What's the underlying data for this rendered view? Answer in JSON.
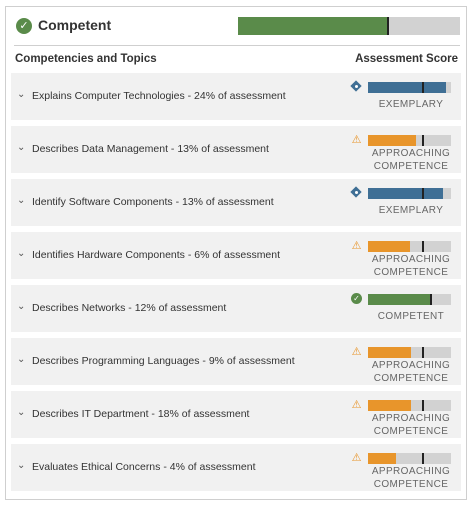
{
  "header": {
    "status": "Competent",
    "bar": {
      "fill_pct": 68,
      "marker_pct": 67,
      "color": "#5a8b4a"
    }
  },
  "columns": {
    "left": "Competencies and Topics",
    "right": "Assessment Score"
  },
  "colors": {
    "exemplary": "#3f6f95",
    "approaching": "#e8952b",
    "competent": "#5a8b4a",
    "track": "#d2d2d2"
  },
  "rows": [
    {
      "label": "Explains Computer Technologies - 24% of assessment",
      "level": "EXEMPLARY",
      "icon": "exemplary-diamond-icon",
      "fill_pct": 94,
      "marker_pct": 65,
      "color": "#3f6f95"
    },
    {
      "label": "Describes Data Management - 13% of assessment",
      "level": "APPROACHING COMPETENCE",
      "icon": "warning-icon",
      "fill_pct": 58,
      "marker_pct": 65,
      "color": "#e8952b"
    },
    {
      "label": "Identify Software Components - 13% of assessment",
      "level": "EXEMPLARY",
      "icon": "exemplary-diamond-icon",
      "fill_pct": 90,
      "marker_pct": 65,
      "color": "#3f6f95"
    },
    {
      "label": "Identifies Hardware Components - 6% of assessment",
      "level": "APPROACHING COMPETENCE",
      "icon": "warning-icon",
      "fill_pct": 51,
      "marker_pct": 65,
      "color": "#e8952b"
    },
    {
      "label": "Describes Networks - 12% of assessment",
      "level": "COMPETENT",
      "icon": "check-circle-icon",
      "fill_pct": 76,
      "marker_pct": 75,
      "color": "#5a8b4a"
    },
    {
      "label": "Describes Programming Languages - 9% of assessment",
      "level": "APPROACHING COMPETENCE",
      "icon": "warning-icon",
      "fill_pct": 52,
      "marker_pct": 65,
      "color": "#e8952b"
    },
    {
      "label": "Describes IT Department - 18% of assessment",
      "level": "APPROACHING COMPETENCE",
      "icon": "warning-icon",
      "fill_pct": 52,
      "marker_pct": 65,
      "color": "#e8952b"
    },
    {
      "label": "Evaluates Ethical Concerns - 4% of assessment",
      "level": "APPROACHING COMPETENCE",
      "icon": "warning-icon",
      "fill_pct": 34,
      "marker_pct": 65,
      "color": "#e8952b"
    }
  ]
}
